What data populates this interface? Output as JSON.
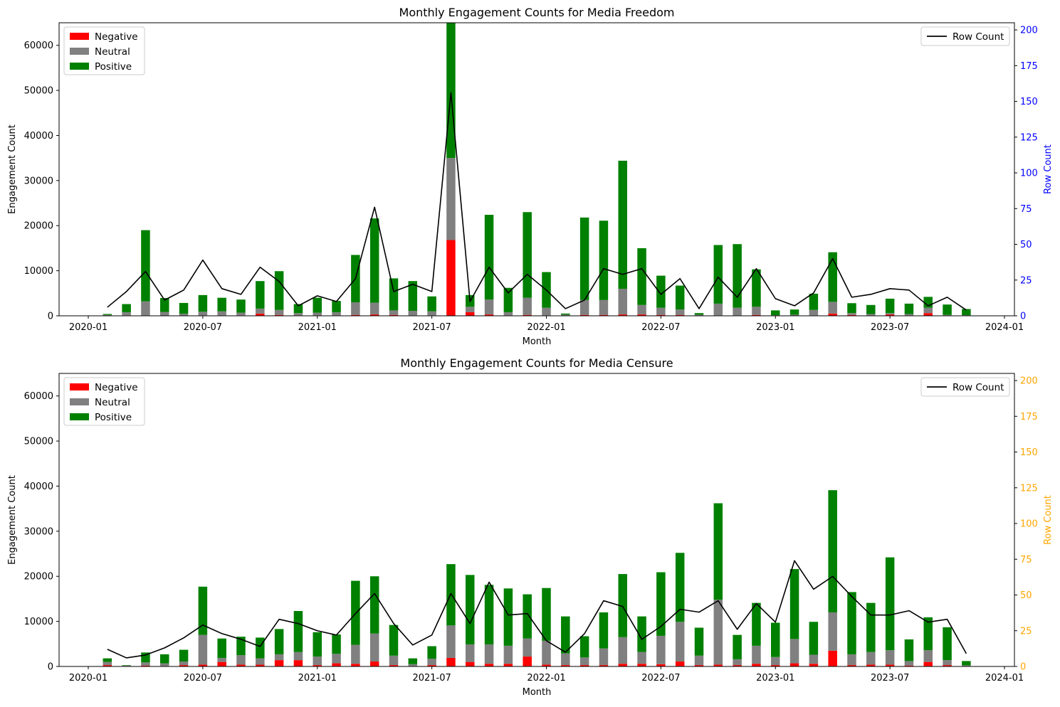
{
  "colors": {
    "negative": "#ff0000",
    "neutral": "#808080",
    "positive": "#008000",
    "row_count_line": "#000000",
    "right_axis_top": "#0000ff",
    "right_axis_bottom": "#ffa500"
  },
  "chart_data": [
    {
      "type": "bar",
      "title": "Monthly Engagement Counts for Media Freedom",
      "xlabel": "Month",
      "ylabel": "Engagement Count",
      "y2label": "Row Count",
      "ylim": [
        0,
        65000
      ],
      "y2lim": [
        0,
        205
      ],
      "yticks": [
        0,
        10000,
        20000,
        30000,
        40000,
        50000,
        60000
      ],
      "y2ticks": [
        0,
        25,
        50,
        75,
        100,
        125,
        150,
        175,
        200
      ],
      "xticks": [
        "2020-01",
        "2020-07",
        "2021-01",
        "2021-07",
        "2022-01",
        "2022-07",
        "2023-01",
        "2023-07",
        "2024-01"
      ],
      "legend_bars": [
        "Negative",
        "Neutral",
        "Positive"
      ],
      "legend_line": "Row Count",
      "legend_bars_position": "top-left",
      "legend_line_position": "top-right",
      "categories": [
        "2020-02",
        "2020-03",
        "2020-04",
        "2020-05",
        "2020-06",
        "2020-07",
        "2020-08",
        "2020-09",
        "2020-10",
        "2020-11",
        "2020-12",
        "2021-01",
        "2021-02",
        "2021-03",
        "2021-04",
        "2021-05",
        "2021-06",
        "2021-07",
        "2021-08",
        "2021-09",
        "2021-10",
        "2021-11",
        "2021-12",
        "2022-01",
        "2022-02",
        "2022-03",
        "2022-04",
        "2022-05",
        "2022-06",
        "2022-07",
        "2022-08",
        "2022-09",
        "2022-10",
        "2022-11",
        "2022-12",
        "2023-01",
        "2023-02",
        "2023-03",
        "2023-04",
        "2023-05",
        "2023-06",
        "2023-07",
        "2023-08",
        "2023-09",
        "2023-10",
        "2023-11"
      ],
      "series": [
        {
          "name": "Negative",
          "values": [
            0,
            100,
            100,
            50,
            50,
            100,
            100,
            100,
            500,
            200,
            100,
            100,
            100,
            200,
            300,
            200,
            100,
            100,
            16800,
            800,
            300,
            100,
            200,
            100,
            50,
            200,
            200,
            300,
            300,
            200,
            200,
            50,
            100,
            100,
            200,
            50,
            50,
            100,
            500,
            200,
            100,
            300,
            100,
            600,
            100,
            50
          ]
        },
        {
          "name": "Neutral",
          "values": [
            200,
            700,
            3100,
            800,
            400,
            800,
            900,
            600,
            1100,
            1100,
            500,
            600,
            700,
            2800,
            2600,
            1000,
            1000,
            900,
            18200,
            1200,
            3300,
            700,
            3800,
            1700,
            200,
            3300,
            3300,
            5700,
            2100,
            1600,
            1200,
            200,
            2600,
            1700,
            1800,
            100,
            200,
            1200,
            2600,
            400,
            300,
            300,
            300,
            1200,
            100,
            100
          ]
        },
        {
          "name": "Positive",
          "values": [
            200,
            1800,
            15800,
            3100,
            2400,
            3700,
            3000,
            2900,
            6100,
            8600,
            2000,
            3300,
            2500,
            10500,
            18700,
            7100,
            6600,
            3300,
            30000,
            2600,
            18800,
            5400,
            19000,
            7900,
            250,
            18300,
            17600,
            28400,
            12600,
            7100,
            5300,
            350,
            13000,
            14100,
            8300,
            1050,
            1150,
            3600,
            11000,
            2200,
            2000,
            3200,
            2300,
            2400,
            2300,
            1350
          ]
        },
        {
          "name": "Row Count",
          "values": [
            6,
            17,
            31,
            11,
            18,
            39,
            19,
            15,
            34,
            24,
            7,
            14,
            10,
            26,
            76,
            17,
            22,
            17,
            156,
            10,
            34,
            16,
            29,
            18,
            5,
            11,
            33,
            29,
            33,
            15,
            26,
            5,
            27,
            13,
            33,
            12,
            7,
            16,
            40,
            13,
            15,
            19,
            18,
            7,
            13,
            4
          ]
        }
      ]
    },
    {
      "type": "bar",
      "title": "Monthly Engagement Counts for Media Censure",
      "xlabel": "Month",
      "ylabel": "Engagement Count",
      "y2label": "Row Count",
      "ylim": [
        0,
        65000
      ],
      "y2lim": [
        0,
        205
      ],
      "yticks": [
        0,
        10000,
        20000,
        30000,
        40000,
        50000,
        60000
      ],
      "y2ticks": [
        0,
        25,
        50,
        75,
        100,
        125,
        150,
        175,
        200
      ],
      "xticks": [
        "2020-01",
        "2020-07",
        "2021-01",
        "2021-07",
        "2022-01",
        "2022-07",
        "2023-01",
        "2023-07",
        "2024-01"
      ],
      "legend_bars": [
        "Negative",
        "Neutral",
        "Positive"
      ],
      "legend_line": "Row Count",
      "legend_bars_position": "top-left",
      "legend_line_position": "top-right",
      "categories": [
        "2020-02",
        "2020-03",
        "2020-04",
        "2020-05",
        "2020-06",
        "2020-07",
        "2020-08",
        "2020-09",
        "2020-10",
        "2020-11",
        "2020-12",
        "2021-01",
        "2021-02",
        "2021-03",
        "2021-04",
        "2021-05",
        "2021-06",
        "2021-07",
        "2021-08",
        "2021-09",
        "2021-10",
        "2021-11",
        "2021-12",
        "2022-01",
        "2022-02",
        "2022-03",
        "2022-04",
        "2022-05",
        "2022-06",
        "2022-07",
        "2022-08",
        "2022-09",
        "2022-10",
        "2022-11",
        "2022-12",
        "2023-01",
        "2023-02",
        "2023-03",
        "2023-04",
        "2023-05",
        "2023-06",
        "2023-07",
        "2023-08",
        "2023-09",
        "2023-10",
        "2023-11"
      ],
      "series": [
        {
          "name": "Negative",
          "values": [
            300,
            100,
            200,
            100,
            300,
            400,
            1000,
            400,
            400,
            1400,
            1400,
            300,
            700,
            600,
            1100,
            300,
            100,
            300,
            1900,
            1000,
            600,
            600,
            2200,
            400,
            300,
            300,
            300,
            600,
            600,
            500,
            1100,
            300,
            400,
            300,
            600,
            300,
            700,
            600,
            3500,
            300,
            400,
            400,
            200,
            1000,
            300,
            100
          ]
        },
        {
          "name": "Neutral",
          "values": [
            700,
            100,
            700,
            600,
            800,
            6600,
            900,
            2100,
            1400,
            1300,
            1800,
            1900,
            2100,
            4200,
            6200,
            2100,
            400,
            1400,
            7200,
            3900,
            4300,
            4000,
            4000,
            5300,
            2600,
            1700,
            3700,
            5900,
            2600,
            6300,
            8800,
            2100,
            14400,
            1300,
            4000,
            1800,
            5400,
            2000,
            8500,
            2400,
            2800,
            3200,
            1000,
            2600,
            1100,
            150
          ]
        },
        {
          "name": "Positive",
          "values": [
            800,
            100,
            2200,
            2000,
            2600,
            10700,
            4300,
            4100,
            4600,
            5600,
            9100,
            5400,
            4300,
            14200,
            12700,
            6800,
            1300,
            2800,
            13600,
            15400,
            13200,
            12700,
            9800,
            11700,
            8200,
            4700,
            8000,
            14000,
            7900,
            14100,
            15300,
            6200,
            21400,
            5400,
            9500,
            7600,
            15500,
            7300,
            27100,
            13800,
            10900,
            20600,
            4800,
            7300,
            7300,
            950
          ]
        },
        {
          "name": "Row Count",
          "values": [
            12,
            6,
            8,
            13,
            20,
            29,
            23,
            19,
            14,
            33,
            30,
            25,
            22,
            37,
            51,
            30,
            15,
            22,
            51,
            30,
            59,
            36,
            37,
            18,
            10,
            23,
            46,
            42,
            19,
            28,
            40,
            38,
            46,
            26,
            44,
            31,
            74,
            54,
            63,
            49,
            36,
            36,
            39,
            31,
            33,
            9
          ]
        }
      ]
    }
  ]
}
